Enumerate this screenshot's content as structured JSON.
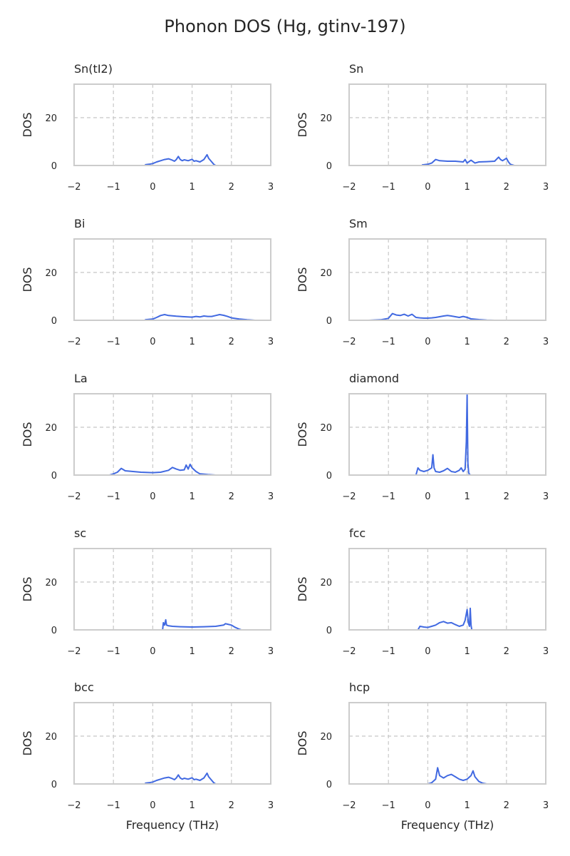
{
  "figure": {
    "title": "Phonon DOS (Hg, gtinv-197)"
  },
  "colors": {
    "line": "#4169e1",
    "grid": "#cccccc",
    "frame": "#cccccc"
  },
  "chart_data": [
    {
      "type": "line",
      "title": "Sn(tI2)",
      "xlabel": "",
      "ylabel": "DOS",
      "xlim": [
        -2,
        3
      ],
      "ylim": [
        0,
        34
      ],
      "xticks": [
        "−2",
        "−1",
        "0",
        "1",
        "2",
        "3"
      ],
      "yticks": [
        "0",
        "20"
      ],
      "grid": true,
      "x": [
        -0.2,
        -0.1,
        0.0,
        0.1,
        0.2,
        0.3,
        0.4,
        0.5,
        0.55,
        0.6,
        0.65,
        0.7,
        0.75,
        0.8,
        0.9,
        1.0,
        1.05,
        1.1,
        1.2,
        1.3,
        1.38,
        1.42,
        1.5,
        1.55,
        1.6
      ],
      "y": [
        0.3,
        0.5,
        0.8,
        1.5,
        2.0,
        2.5,
        2.8,
        2.2,
        1.8,
        2.5,
        3.8,
        2.5,
        2.0,
        2.4,
        2.0,
        2.6,
        1.8,
        2.0,
        1.5,
        2.5,
        4.5,
        3.0,
        1.5,
        0.5,
        0.0
      ]
    },
    {
      "type": "line",
      "title": "Sn",
      "xlabel": "",
      "ylabel": "DOS",
      "xlim": [
        -2,
        3
      ],
      "ylim": [
        0,
        34
      ],
      "xticks": [
        "−2",
        "−1",
        "0",
        "1",
        "2",
        "3"
      ],
      "yticks": [
        "0",
        "20"
      ],
      "grid": true,
      "x": [
        -0.15,
        0.0,
        0.1,
        0.2,
        0.3,
        0.5,
        0.7,
        0.9,
        0.95,
        1.0,
        1.1,
        1.2,
        1.3,
        1.5,
        1.7,
        1.8,
        1.85,
        1.9,
        2.0,
        2.05,
        2.1,
        2.2
      ],
      "y": [
        0.2,
        0.5,
        1.0,
        2.5,
        2.0,
        1.8,
        1.8,
        1.5,
        2.5,
        1.0,
        2.2,
        1.0,
        1.5,
        1.6,
        1.8,
        3.5,
        2.5,
        2.0,
        3.0,
        1.5,
        0.5,
        0.0
      ]
    },
    {
      "type": "line",
      "title": "Bi",
      "xlabel": "",
      "ylabel": "DOS",
      "xlim": [
        -2,
        3
      ],
      "ylim": [
        0,
        34
      ],
      "xticks": [
        "−2",
        "−1",
        "0",
        "1",
        "2",
        "3"
      ],
      "yticks": [
        "0",
        "20"
      ],
      "grid": true,
      "x": [
        -0.2,
        0.0,
        0.1,
        0.2,
        0.3,
        0.4,
        0.6,
        0.8,
        1.0,
        1.1,
        1.2,
        1.3,
        1.4,
        1.5,
        1.6,
        1.7,
        1.8,
        1.9,
        2.0,
        2.2,
        2.4,
        2.6
      ],
      "y": [
        0.2,
        0.5,
        1.2,
        2.0,
        2.4,
        2.0,
        1.7,
        1.5,
        1.3,
        1.6,
        1.4,
        1.8,
        1.6,
        1.6,
        2.0,
        2.4,
        2.1,
        1.6,
        1.0,
        0.5,
        0.2,
        0.0
      ]
    },
    {
      "type": "line",
      "title": "Sm",
      "xlabel": "",
      "ylabel": "DOS",
      "xlim": [
        -2,
        3
      ],
      "ylim": [
        0,
        34
      ],
      "xticks": [
        "−2",
        "−1",
        "0",
        "1",
        "2",
        "3"
      ],
      "yticks": [
        "0",
        "20"
      ],
      "grid": true,
      "x": [
        -1.5,
        -1.2,
        -1.0,
        -0.9,
        -0.8,
        -0.7,
        -0.6,
        -0.5,
        -0.4,
        -0.3,
        -0.2,
        -0.1,
        0.0,
        0.1,
        0.2,
        0.3,
        0.4,
        0.5,
        0.6,
        0.7,
        0.8,
        0.9,
        1.0,
        1.1,
        1.3,
        1.5,
        1.7
      ],
      "y": [
        0.0,
        0.2,
        0.8,
        2.8,
        2.2,
        2.0,
        2.5,
        1.8,
        2.5,
        1.2,
        1.0,
        0.9,
        0.9,
        1.0,
        1.2,
        1.5,
        1.8,
        2.0,
        1.8,
        1.5,
        1.2,
        1.6,
        1.2,
        0.6,
        0.3,
        0.1,
        0.0
      ]
    },
    {
      "type": "line",
      "title": "La",
      "xlabel": "",
      "ylabel": "DOS",
      "xlim": [
        -2,
        3
      ],
      "ylim": [
        0,
        34
      ],
      "xticks": [
        "−2",
        "−1",
        "0",
        "1",
        "2",
        "3"
      ],
      "yticks": [
        "0",
        "20"
      ],
      "grid": true,
      "x": [
        -1.1,
        -1.0,
        -0.9,
        -0.8,
        -0.7,
        -0.5,
        -0.3,
        0.0,
        0.2,
        0.4,
        0.5,
        0.6,
        0.7,
        0.8,
        0.85,
        0.9,
        0.95,
        1.0,
        1.1,
        1.2,
        1.4,
        1.6
      ],
      "y": [
        0.0,
        0.5,
        1.2,
        2.8,
        1.8,
        1.5,
        1.2,
        1.0,
        1.2,
        2.0,
        3.2,
        2.5,
        2.0,
        2.2,
        4.2,
        2.5,
        4.5,
        3.0,
        1.5,
        0.5,
        0.2,
        0.0
      ]
    },
    {
      "type": "line",
      "title": "diamond",
      "xlabel": "",
      "ylabel": "DOS",
      "xlim": [
        -2,
        3
      ],
      "ylim": [
        0,
        34
      ],
      "xticks": [
        "−2",
        "−1",
        "0",
        "1",
        "2",
        "3"
      ],
      "yticks": [
        "0",
        "20"
      ],
      "grid": true,
      "x": [
        -0.3,
        -0.25,
        -0.2,
        -0.1,
        0.0,
        0.1,
        0.13,
        0.16,
        0.2,
        0.3,
        0.4,
        0.5,
        0.6,
        0.7,
        0.8,
        0.85,
        0.9,
        0.95,
        0.98,
        1.0,
        1.02,
        1.04,
        1.06,
        1.1
      ],
      "y": [
        0.0,
        3.0,
        2.0,
        1.5,
        2.0,
        3.0,
        8.5,
        3.0,
        1.5,
        1.2,
        1.8,
        2.8,
        1.5,
        1.2,
        2.0,
        3.0,
        1.5,
        2.5,
        14.0,
        33.5,
        5.0,
        1.0,
        0.2,
        0.0
      ]
    },
    {
      "type": "line",
      "title": "sc",
      "xlabel": "",
      "ylabel": "DOS",
      "xlim": [
        -2,
        3
      ],
      "ylim": [
        0,
        34
      ],
      "xticks": [
        "−2",
        "−1",
        "0",
        "1",
        "2",
        "3"
      ],
      "yticks": [
        "0",
        "20"
      ],
      "grid": true,
      "x": [
        0.25,
        0.27,
        0.3,
        0.33,
        0.35,
        0.4,
        0.5,
        0.7,
        1.0,
        1.3,
        1.6,
        1.8,
        1.85,
        1.9,
        2.0,
        2.1,
        2.2,
        2.25
      ],
      "y": [
        0.0,
        3.0,
        2.0,
        4.2,
        2.0,
        1.7,
        1.5,
        1.3,
        1.2,
        1.3,
        1.5,
        2.0,
        2.6,
        2.4,
        2.0,
        1.0,
        0.3,
        0.0
      ]
    },
    {
      "type": "line",
      "title": "fcc",
      "xlabel": "",
      "ylabel": "DOS",
      "xlim": [
        -2,
        3
      ],
      "ylim": [
        0,
        34
      ],
      "xticks": [
        "−2",
        "−1",
        "0",
        "1",
        "2",
        "3"
      ],
      "yticks": [
        "0",
        "20"
      ],
      "grid": true,
      "x": [
        -0.25,
        -0.2,
        -0.1,
        0.0,
        0.1,
        0.2,
        0.3,
        0.4,
        0.5,
        0.6,
        0.7,
        0.8,
        0.9,
        0.95,
        1.0,
        1.03,
        1.06,
        1.08,
        1.1,
        1.12
      ],
      "y": [
        0.0,
        1.5,
        1.2,
        1.0,
        1.5,
        2.0,
        3.0,
        3.5,
        2.8,
        3.0,
        2.2,
        1.5,
        2.0,
        4.0,
        8.5,
        3.0,
        1.5,
        9.0,
        2.0,
        0.0
      ]
    },
    {
      "type": "line",
      "title": "bcc",
      "xlabel": "",
      "ylabel": "DOS",
      "xlim": [
        -2,
        3
      ],
      "ylim": [
        0,
        34
      ],
      "xticks": [
        "−2",
        "−1",
        "0",
        "1",
        "2",
        "3"
      ],
      "yticks": [
        "0",
        "20"
      ],
      "grid": true,
      "x": [
        -0.2,
        -0.1,
        0.0,
        0.1,
        0.2,
        0.3,
        0.4,
        0.5,
        0.55,
        0.6,
        0.65,
        0.7,
        0.75,
        0.8,
        0.9,
        1.0,
        1.05,
        1.1,
        1.2,
        1.3,
        1.38,
        1.42,
        1.5,
        1.55,
        1.6
      ],
      "y": [
        0.3,
        0.5,
        0.8,
        1.5,
        2.0,
        2.5,
        2.8,
        2.2,
        1.8,
        2.5,
        3.8,
        2.5,
        2.0,
        2.4,
        2.0,
        2.6,
        1.8,
        2.0,
        1.5,
        2.5,
        4.5,
        3.0,
        1.5,
        0.5,
        0.0
      ]
    },
    {
      "type": "line",
      "title": "hcp",
      "xlabel": "Frequency (THz)",
      "ylabel": "DOS",
      "xlim": [
        -2,
        3
      ],
      "ylim": [
        0,
        34
      ],
      "xticks": [
        "−2",
        "−1",
        "0",
        "1",
        "2",
        "3"
      ],
      "yticks": [
        "0",
        "20"
      ],
      "grid": true,
      "x": [
        0.0,
        0.1,
        0.2,
        0.25,
        0.3,
        0.4,
        0.5,
        0.6,
        0.7,
        0.8,
        0.9,
        1.0,
        1.1,
        1.15,
        1.2,
        1.3,
        1.4,
        1.5
      ],
      "y": [
        0.0,
        0.5,
        2.0,
        6.8,
        3.5,
        2.5,
        3.5,
        4.0,
        3.0,
        2.0,
        1.5,
        2.0,
        3.5,
        5.5,
        3.0,
        1.0,
        0.3,
        0.0
      ]
    }
  ]
}
